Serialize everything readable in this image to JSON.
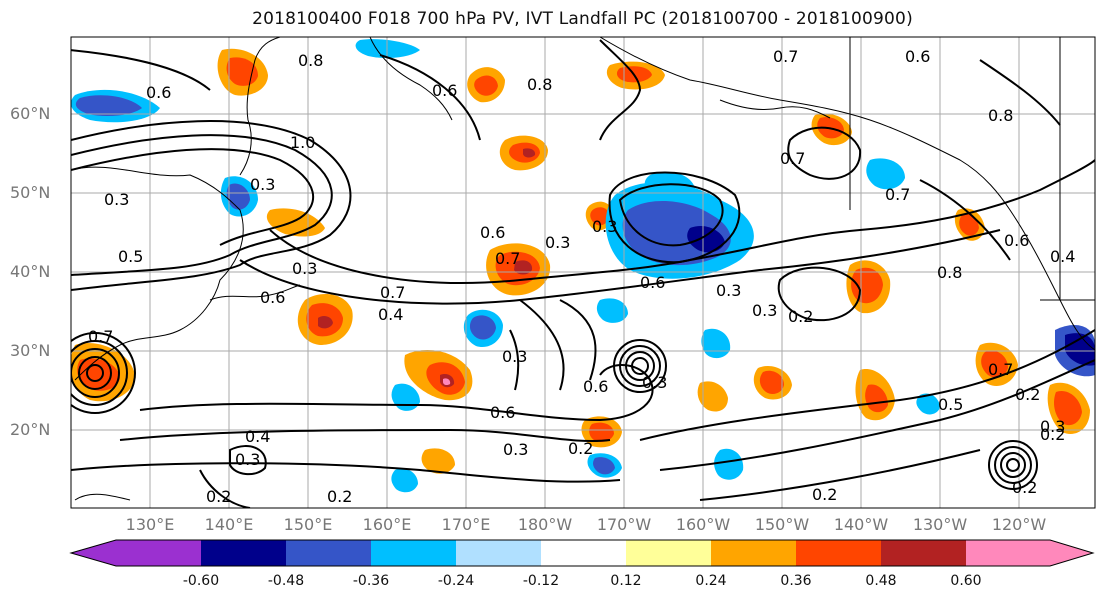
{
  "title": "2018100400 F018 700 hPa PV, IVT Landfall PC (2018100700 - 2018100900)",
  "lat_labels": [
    "60°N",
    "50°N",
    "40°N",
    "30°N",
    "20°N"
  ],
  "lon_labels": [
    "130°E",
    "140°E",
    "150°E",
    "160°E",
    "170°E",
    "180°W",
    "170°W",
    "160°W",
    "150°W",
    "140°W",
    "130°W",
    "120°W"
  ],
  "contour_labels": [
    "0.8",
    "0.6",
    "0.7",
    "0.6",
    "0.8",
    "0.8",
    "0.7",
    "0.6",
    "0.3",
    "1.0",
    "0.3",
    "0.6",
    "0.3",
    "0.5",
    "0.6",
    "0.3",
    "0.3",
    "0.7",
    "0.7",
    "0.7",
    "0.6",
    "0.8",
    "0.4",
    "0.7",
    "0.6",
    "0.4",
    "0.3",
    "0.3",
    "0.3",
    "0.3",
    "0.2",
    "0.6",
    "0.4",
    "0.3",
    "0.6",
    "0.3",
    "0.2",
    "0.7",
    "0.5",
    "0.3",
    "0.2",
    "0.2",
    "0.2",
    "0.2",
    "0.2",
    "0.2"
  ],
  "colorbar": {
    "colors": [
      "#9b30d0",
      "#00008b",
      "#3555c8",
      "#00bfff",
      "#b0e0ff",
      "#ffffff",
      "#ffff99",
      "#ffa500",
      "#ff4500",
      "#b22222",
      "#ff88bb"
    ],
    "tick_labels": [
      "-0.60",
      "-0.48",
      "-0.36",
      "-0.24",
      "-0.12",
      "0.12",
      "0.24",
      "0.36",
      "0.48",
      "0.60"
    ]
  }
}
